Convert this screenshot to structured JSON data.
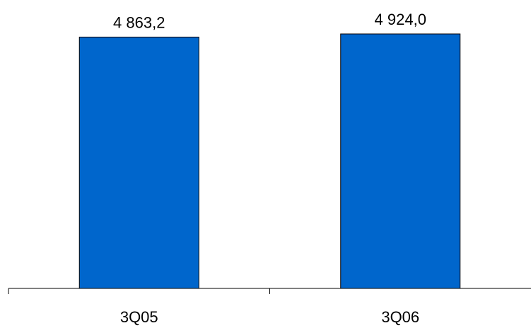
{
  "chart_data": {
    "type": "bar",
    "categories": [
      "3Q05",
      "3Q06"
    ],
    "values": [
      4863.2,
      4924.0
    ],
    "value_labels": [
      "4 863,2",
      "4 924,0"
    ],
    "title": "",
    "xlabel": "",
    "ylabel": "",
    "grid": false,
    "legend": "none",
    "colors": {
      "bar": "#0066cc",
      "outline": "#000000"
    }
  }
}
